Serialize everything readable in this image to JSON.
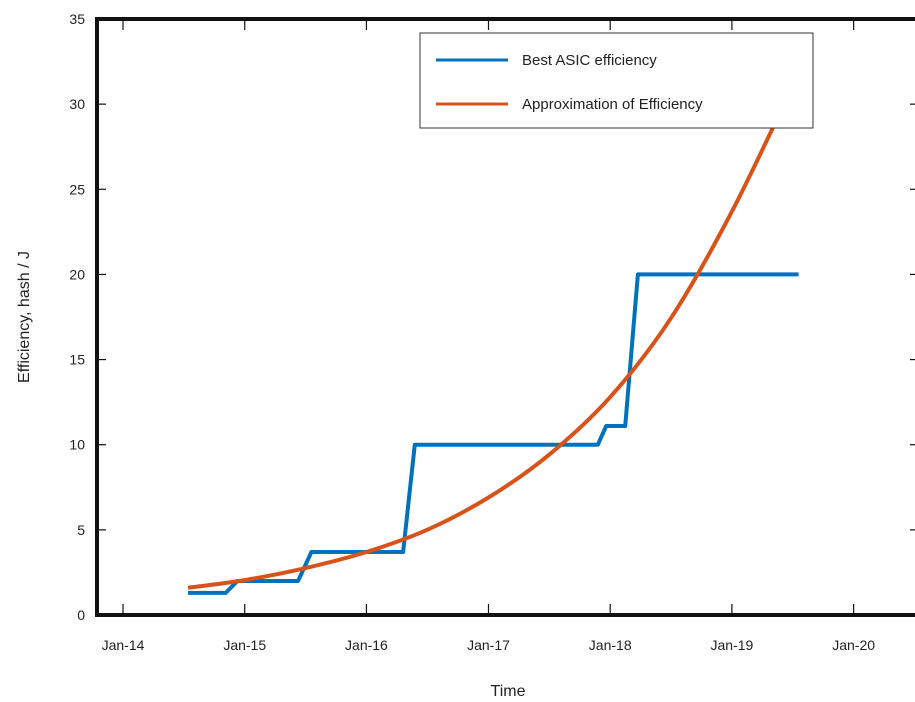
{
  "chart_data": {
    "type": "line",
    "title": "",
    "xlabel": "Time",
    "ylabel": "Efficiency, hash / J",
    "xlim": [
      "2013-10-15",
      "2020-07-15"
    ],
    "ylim": [
      0,
      35
    ],
    "x_ticks": [
      {
        "date": "2014-01-01",
        "label": "Jan-14"
      },
      {
        "date": "2015-01-01",
        "label": "Jan-15"
      },
      {
        "date": "2016-01-01",
        "label": "Jan-16"
      },
      {
        "date": "2017-01-01",
        "label": "Jan-17"
      },
      {
        "date": "2018-01-01",
        "label": "Jan-18"
      },
      {
        "date": "2019-01-01",
        "label": "Jan-19"
      },
      {
        "date": "2020-01-01",
        "label": "Jan-20"
      }
    ],
    "y_ticks": [
      0,
      5,
      10,
      15,
      20,
      25,
      30,
      35
    ],
    "grid": false,
    "legend_position": "top-right",
    "series": [
      {
        "name": "Best ASIC efficiency",
        "color": "#0072BD",
        "points": [
          {
            "x": "2014-07-15",
            "y": 1.3
          },
          {
            "x": "2014-11-05",
            "y": 1.3
          },
          {
            "x": "2014-12-10",
            "y": 2.0
          },
          {
            "x": "2015-06-10",
            "y": 2.0
          },
          {
            "x": "2015-07-20",
            "y": 3.7
          },
          {
            "x": "2016-04-20",
            "y": 3.7
          },
          {
            "x": "2016-05-25",
            "y": 10.0
          },
          {
            "x": "2017-11-25",
            "y": 10.0
          },
          {
            "x": "2017-12-20",
            "y": 11.1
          },
          {
            "x": "2018-02-15",
            "y": 11.1
          },
          {
            "x": "2018-03-25",
            "y": 20.0
          },
          {
            "x": "2019-07-20",
            "y": 20.0
          }
        ]
      },
      {
        "name": "Approximation of Efficiency",
        "color": "#D95319",
        "points": [
          {
            "x": "2014-07-15",
            "y": 1.6
          },
          {
            "x": "2015-01-01",
            "y": 2.05
          },
          {
            "x": "2015-07-01",
            "y": 2.75
          },
          {
            "x": "2016-01-01",
            "y": 3.7
          },
          {
            "x": "2016-07-01",
            "y": 5.0
          },
          {
            "x": "2017-01-01",
            "y": 6.9
          },
          {
            "x": "2017-07-01",
            "y": 9.4
          },
          {
            "x": "2018-01-01",
            "y": 12.8
          },
          {
            "x": "2018-07-01",
            "y": 17.4
          },
          {
            "x": "2019-01-01",
            "y": 23.7
          },
          {
            "x": "2019-07-20",
            "y": 31.8
          }
        ]
      }
    ]
  }
}
